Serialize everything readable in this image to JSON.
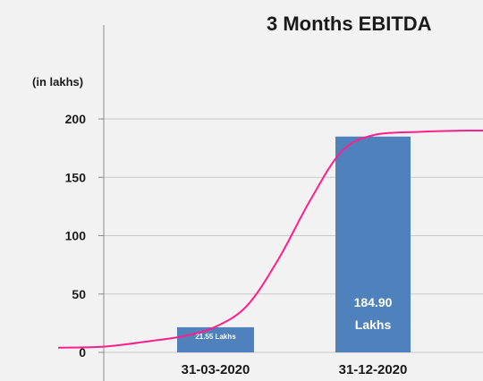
{
  "chart_data": {
    "type": "bar",
    "title": "3 Months EBITDA",
    "ylabel": "(in lakhs)",
    "xlabel": "",
    "categories": [
      "31-03-2020",
      "31-12-2020"
    ],
    "values": [
      21.55,
      184.9
    ],
    "data_labels": [
      "21.55 Lakhs",
      "184.90 Lakhs"
    ],
    "ylim": [
      0,
      200
    ],
    "yticks": [
      0,
      50,
      100,
      150,
      200
    ],
    "grid": true,
    "legend": "none",
    "colors": {
      "bar": "#4f81bd",
      "trend_line": "#ff1f8c",
      "grid": "#c8c8c8",
      "axis": "#8c8c8c",
      "background": "#f2f2f2"
    },
    "trend_line": {
      "type": "line",
      "x": [
        -1.0,
        -0.7,
        -0.4,
        -0.2,
        0.0,
        0.2,
        0.4,
        0.6,
        0.8,
        1.0,
        1.3,
        1.6,
        1.9
      ],
      "y": [
        4,
        5,
        10,
        14,
        22,
        40,
        80,
        130,
        172,
        186,
        189,
        190,
        190
      ]
    }
  }
}
